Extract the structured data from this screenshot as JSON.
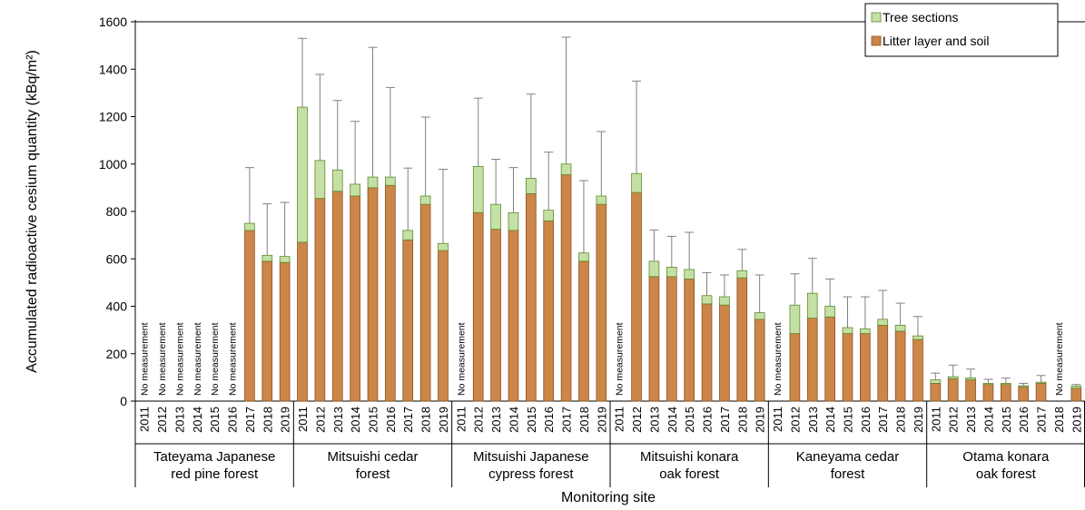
{
  "chart_data": {
    "type": "bar",
    "stacked": true,
    "title": "",
    "xlabel": "Monitoring site",
    "ylabel": "Accumulated radioactive cesium quantity (kBq/m²)",
    "ylim": [
      0,
      1600
    ],
    "yticks": [
      0,
      200,
      400,
      600,
      800,
      1000,
      1200,
      1400,
      1600
    ],
    "grid": false,
    "legend_position": "top-right",
    "colors": {
      "tree": "#c5e0a5",
      "tree_edge": "#5f8a30",
      "litter": "#cc8648",
      "litter_edge": "#8a5222",
      "errorbar": "#808080"
    },
    "legend": [
      {
        "key": "tree",
        "label": "Tree sections"
      },
      {
        "key": "litter",
        "label": "Litter layer and soil"
      }
    ],
    "no_measurement_label": "No measurement",
    "sites": [
      {
        "name": [
          "Tateyama Japanese",
          "red pine forest"
        ],
        "years": [
          "2011",
          "2012",
          "2013",
          "2014",
          "2015",
          "2016",
          "2017",
          "2018",
          "2019"
        ],
        "litter": [
          null,
          null,
          null,
          null,
          null,
          null,
          720,
          590,
          585
        ],
        "tree": [
          null,
          null,
          null,
          null,
          null,
          null,
          30,
          25,
          25
        ],
        "error_top": [
          null,
          null,
          null,
          null,
          null,
          null,
          985,
          832,
          838
        ]
      },
      {
        "name": [
          "Mitsuishi cedar",
          "forest"
        ],
        "years": [
          "2011",
          "2012",
          "2013",
          "2014",
          "2015",
          "2016",
          "2017",
          "2018",
          "2019"
        ],
        "litter": [
          670,
          855,
          885,
          865,
          900,
          910,
          680,
          830,
          635
        ],
        "tree": [
          570,
          160,
          90,
          50,
          45,
          35,
          40,
          35,
          30
        ],
        "error_top": [
          1530,
          1378,
          1268,
          1180,
          1492,
          1323,
          983,
          1198,
          978
        ]
      },
      {
        "name": [
          "Mitsuishi Japanese",
          "cypress forest"
        ],
        "years": [
          "2011",
          "2012",
          "2013",
          "2014",
          "2015",
          "2016",
          "2017",
          "2018",
          "2019"
        ],
        "litter": [
          null,
          795,
          725,
          720,
          875,
          760,
          955,
          590,
          830
        ],
        "tree": [
          null,
          195,
          105,
          75,
          65,
          45,
          45,
          35,
          35
        ],
        "error_top": [
          null,
          1278,
          1020,
          985,
          1295,
          1050,
          1535,
          930,
          1137
        ]
      },
      {
        "name": [
          "Mitsuishi konara",
          "oak forest"
        ],
        "years": [
          "2011",
          "2012",
          "2013",
          "2014",
          "2015",
          "2016",
          "2017",
          "2018",
          "2019"
        ],
        "litter": [
          null,
          880,
          525,
          525,
          515,
          410,
          405,
          520,
          345
        ],
        "tree": [
          null,
          80,
          65,
          40,
          40,
          35,
          35,
          30,
          28
        ],
        "error_top": [
          null,
          1350,
          722,
          695,
          712,
          542,
          532,
          640,
          532
        ]
      },
      {
        "name": [
          "Kaneyama cedar",
          "forest"
        ],
        "years": [
          "2011",
          "2012",
          "2013",
          "2014",
          "2015",
          "2016",
          "2017",
          "2018",
          "2019"
        ],
        "litter": [
          null,
          285,
          350,
          355,
          285,
          285,
          320,
          295,
          260
        ],
        "tree": [
          null,
          120,
          105,
          45,
          25,
          20,
          25,
          25,
          15
        ],
        "error_top": [
          null,
          537,
          602,
          515,
          440,
          440,
          467,
          413,
          357
        ]
      },
      {
        "name": [
          "Otama konara",
          "oak forest"
        ],
        "years": [
          "2011",
          "2012",
          "2013",
          "2014",
          "2015",
          "2016",
          "2017",
          "2018",
          "2019"
        ],
        "litter": [
          75,
          95,
          90,
          70,
          70,
          60,
          75,
          null,
          55
        ],
        "tree": [
          15,
          8,
          8,
          5,
          5,
          5,
          5,
          null,
          8
        ],
        "error_top": [
          118,
          152,
          135,
          92,
          97,
          75,
          108,
          null,
          70
        ]
      }
    ]
  }
}
